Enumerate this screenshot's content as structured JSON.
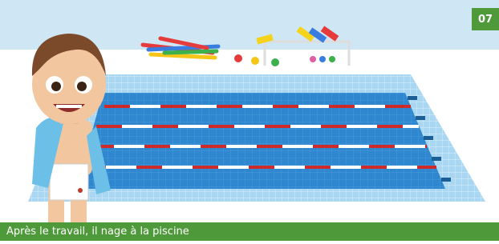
{
  "badge": "07",
  "caption": "Après le travail, il nage à la piscine"
}
